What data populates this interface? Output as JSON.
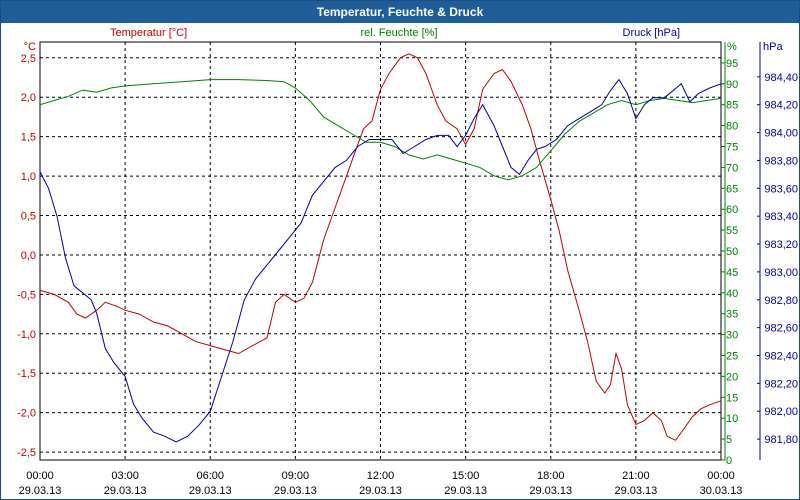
{
  "window": {
    "title": "Temperatur, Feuchte & Druck"
  },
  "chart_data": {
    "type": "line",
    "title": "Temperatur, Feuchte & Druck",
    "x_range_hours": [
      0,
      24
    ],
    "x_ticks": [
      {
        "time": "00:00",
        "date": "29.03.13"
      },
      {
        "time": "03:00",
        "date": "29.03.13"
      },
      {
        "time": "06:00",
        "date": "29.03.13"
      },
      {
        "time": "09:00",
        "date": "29.03.13"
      },
      {
        "time": "12:00",
        "date": "29.03.13"
      },
      {
        "time": "15:00",
        "date": "29.03.13"
      },
      {
        "time": "18:00",
        "date": "29.03.13"
      },
      {
        "time": "21:00",
        "date": "29.03.13"
      },
      {
        "time": "00:00",
        "date": "30.03.13"
      }
    ],
    "axes": {
      "temperature": {
        "unit": "°C",
        "label": "Temperatur [°C]",
        "range": [
          -2.6,
          2.7
        ],
        "color": "#c00000",
        "ticks": [
          "2,5",
          "2,0",
          "1,5",
          "1,0",
          "0,5",
          "0,0",
          "-0,5",
          "-1,0",
          "-1,5",
          "-2,0",
          "-2,5"
        ]
      },
      "humidity": {
        "unit": "%",
        "label": "rel. Feuchte [%]",
        "range": [
          0,
          100
        ],
        "color": "#008000",
        "ticks": [
          "95",
          "90",
          "85",
          "80",
          "75",
          "70",
          "65",
          "60",
          "55",
          "50",
          "45",
          "40",
          "35",
          "30",
          "25",
          "20",
          "15",
          "10",
          "5",
          "0"
        ]
      },
      "pressure": {
        "unit": "hPa",
        "label": "Druck [hPa]",
        "range": [
          981.65,
          984.65
        ],
        "color": "#00009c",
        "ticks": [
          "984,40",
          "984,20",
          "984,00",
          "983,80",
          "983,60",
          "983,40",
          "983,20",
          "983,00",
          "982,80",
          "982,60",
          "982,40",
          "982,20",
          "982,00",
          "981,80"
        ]
      }
    },
    "series": [
      {
        "name": "Temperatur [°C]",
        "axis": "temperature",
        "color": "#c00000",
        "points": [
          [
            0,
            -0.45
          ],
          [
            0.5,
            -0.5
          ],
          [
            1,
            -0.6
          ],
          [
            1.3,
            -0.75
          ],
          [
            1.6,
            -0.8
          ],
          [
            2,
            -0.7
          ],
          [
            2.3,
            -0.6
          ],
          [
            2.7,
            -0.65
          ],
          [
            3,
            -0.7
          ],
          [
            3.5,
            -0.75
          ],
          [
            4,
            -0.85
          ],
          [
            4.5,
            -0.9
          ],
          [
            5,
            -1.0
          ],
          [
            5.5,
            -1.1
          ],
          [
            6,
            -1.15
          ],
          [
            6.5,
            -1.2
          ],
          [
            7,
            -1.25
          ],
          [
            7.5,
            -1.15
          ],
          [
            8,
            -1.05
          ],
          [
            8.3,
            -0.6
          ],
          [
            8.6,
            -0.5
          ],
          [
            9,
            -0.6
          ],
          [
            9.3,
            -0.55
          ],
          [
            9.6,
            -0.35
          ],
          [
            10,
            0.2
          ],
          [
            10.3,
            0.5
          ],
          [
            10.6,
            0.8
          ],
          [
            11,
            1.2
          ],
          [
            11.4,
            1.6
          ],
          [
            11.7,
            1.7
          ],
          [
            12,
            2.1
          ],
          [
            12.3,
            2.3
          ],
          [
            12.7,
            2.5
          ],
          [
            13,
            2.55
          ],
          [
            13.3,
            2.5
          ],
          [
            13.6,
            2.3
          ],
          [
            14,
            1.9
          ],
          [
            14.3,
            1.7
          ],
          [
            14.7,
            1.6
          ],
          [
            15,
            1.4
          ],
          [
            15.3,
            1.6
          ],
          [
            15.6,
            2.1
          ],
          [
            16,
            2.3
          ],
          [
            16.3,
            2.35
          ],
          [
            16.6,
            2.2
          ],
          [
            17,
            1.9
          ],
          [
            17.3,
            1.6
          ],
          [
            17.6,
            1.2
          ],
          [
            18,
            0.7
          ],
          [
            18.3,
            0.3
          ],
          [
            18.6,
            -0.2
          ],
          [
            19,
            -0.7
          ],
          [
            19.3,
            -1.1
          ],
          [
            19.6,
            -1.6
          ],
          [
            19.9,
            -1.75
          ],
          [
            20.1,
            -1.65
          ],
          [
            20.3,
            -1.25
          ],
          [
            20.5,
            -1.45
          ],
          [
            20.7,
            -1.9
          ],
          [
            21,
            -2.15
          ],
          [
            21.3,
            -2.1
          ],
          [
            21.6,
            -2.0
          ],
          [
            21.9,
            -2.1
          ],
          [
            22.1,
            -2.3
          ],
          [
            22.4,
            -2.35
          ],
          [
            22.7,
            -2.2
          ],
          [
            23,
            -2.05
          ],
          [
            23.3,
            -1.95
          ],
          [
            23.6,
            -1.9
          ],
          [
            24,
            -1.85
          ]
        ]
      },
      {
        "name": "rel. Feuchte [%]",
        "axis": "humidity",
        "color": "#008000",
        "points": [
          [
            0,
            85
          ],
          [
            0.5,
            86
          ],
          [
            1,
            87
          ],
          [
            1.5,
            88.5
          ],
          [
            2,
            88
          ],
          [
            2.5,
            89
          ],
          [
            3,
            89.5
          ],
          [
            4,
            90
          ],
          [
            5,
            90.5
          ],
          [
            6,
            91
          ],
          [
            7,
            91
          ],
          [
            8,
            90.8
          ],
          [
            8.6,
            90.5
          ],
          [
            9,
            89
          ],
          [
            9.5,
            86
          ],
          [
            10,
            82
          ],
          [
            10.5,
            80
          ],
          [
            11,
            78
          ],
          [
            11.5,
            76
          ],
          [
            12,
            76
          ],
          [
            12.5,
            75
          ],
          [
            13,
            73
          ],
          [
            13.5,
            72
          ],
          [
            14,
            73
          ],
          [
            14.5,
            72
          ],
          [
            15,
            71
          ],
          [
            15.5,
            70
          ],
          [
            16,
            68
          ],
          [
            16.5,
            67
          ],
          [
            17,
            68
          ],
          [
            17.5,
            70
          ],
          [
            18,
            74
          ],
          [
            18.5,
            78
          ],
          [
            19,
            81
          ],
          [
            19.5,
            83
          ],
          [
            20,
            85
          ],
          [
            20.5,
            86
          ],
          [
            21,
            85
          ],
          [
            21.5,
            86
          ],
          [
            22,
            86.5
          ],
          [
            22.5,
            86
          ],
          [
            23,
            85.5
          ],
          [
            23.5,
            86
          ],
          [
            24,
            86.5
          ]
        ]
      },
      {
        "name": "Druck [hPa]",
        "axis": "pressure",
        "color": "#00009c",
        "points": [
          [
            0,
            983.72
          ],
          [
            0.3,
            983.6
          ],
          [
            0.6,
            983.4
          ],
          [
            0.9,
            983.1
          ],
          [
            1.2,
            982.9
          ],
          [
            1.5,
            982.85
          ],
          [
            1.8,
            982.8
          ],
          [
            2,
            982.7
          ],
          [
            2.3,
            982.45
          ],
          [
            2.6,
            982.35
          ],
          [
            3,
            982.25
          ],
          [
            3.3,
            982.05
          ],
          [
            3.6,
            981.95
          ],
          [
            4,
            981.85
          ],
          [
            4.4,
            981.82
          ],
          [
            4.8,
            981.78
          ],
          [
            5.2,
            981.82
          ],
          [
            5.6,
            981.9
          ],
          [
            6,
            982.0
          ],
          [
            6.4,
            982.25
          ],
          [
            6.8,
            982.5
          ],
          [
            7.2,
            982.8
          ],
          [
            7.6,
            982.95
          ],
          [
            8,
            983.05
          ],
          [
            8.4,
            983.15
          ],
          [
            8.8,
            983.25
          ],
          [
            9.2,
            983.35
          ],
          [
            9.6,
            983.55
          ],
          [
            10,
            983.65
          ],
          [
            10.4,
            983.75
          ],
          [
            10.8,
            983.8
          ],
          [
            11.2,
            983.9
          ],
          [
            11.6,
            983.95
          ],
          [
            12,
            983.95
          ],
          [
            12.4,
            983.95
          ],
          [
            12.8,
            983.85
          ],
          [
            13.2,
            983.9
          ],
          [
            13.6,
            983.95
          ],
          [
            14,
            983.98
          ],
          [
            14.4,
            983.98
          ],
          [
            14.7,
            983.9
          ],
          [
            15,
            983.98
          ],
          [
            15.3,
            984.1
          ],
          [
            15.6,
            984.2
          ],
          [
            16,
            984.05
          ],
          [
            16.3,
            983.9
          ],
          [
            16.6,
            983.75
          ],
          [
            16.9,
            983.7
          ],
          [
            17.2,
            983.8
          ],
          [
            17.5,
            983.88
          ],
          [
            17.8,
            983.9
          ],
          [
            18.2,
            983.95
          ],
          [
            18.6,
            984.05
          ],
          [
            19,
            984.1
          ],
          [
            19.4,
            984.15
          ],
          [
            19.8,
            984.2
          ],
          [
            20.1,
            984.3
          ],
          [
            20.4,
            984.38
          ],
          [
            20.7,
            984.28
          ],
          [
            21,
            984.1
          ],
          [
            21.3,
            984.2
          ],
          [
            21.6,
            984.25
          ],
          [
            22,
            984.25
          ],
          [
            22.3,
            984.3
          ],
          [
            22.6,
            984.35
          ],
          [
            22.9,
            984.22
          ],
          [
            23.2,
            984.28
          ],
          [
            23.6,
            984.32
          ],
          [
            24,
            984.35
          ]
        ]
      }
    ],
    "grid": true
  }
}
